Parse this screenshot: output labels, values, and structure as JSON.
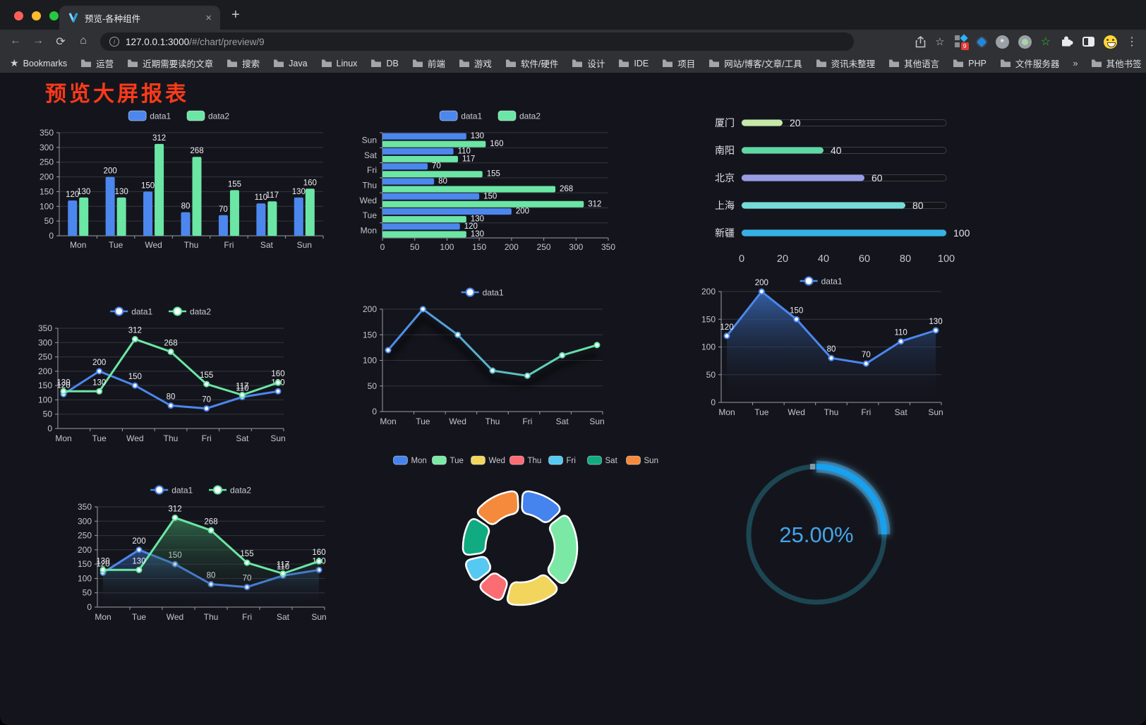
{
  "browser": {
    "traffic_lights": [
      "#ff5f57",
      "#febc2e",
      "#28c840"
    ],
    "tab": {
      "title": "预览-各种组件",
      "close_icon": "×",
      "new_tab_icon": "+"
    },
    "nav": {
      "back_icon": "←",
      "forward_icon": "→",
      "reload_icon": "⟳",
      "home_icon": "⌂",
      "info_icon": "i"
    },
    "url": {
      "host": "127.0.0.1:3000",
      "path": "/#/chart/preview/9"
    },
    "actions": {
      "star_icon": "☆",
      "menu_icon": "⋮"
    },
    "extension_badge": "9",
    "bookmarks_label": "Bookmarks",
    "bookmarks": [
      "运营",
      "近期需要读的文章",
      "搜索",
      "Java",
      "Linux",
      "DB",
      "前端",
      "游戏",
      "软件/硬件",
      "设计",
      "IDE",
      "项目",
      "网站/博客/文章/工具",
      "资讯未整理",
      "其他语言",
      "PHP",
      "文件服务器"
    ],
    "bookmarks_overflow": "»",
    "other_bookmarks": "其他书签"
  },
  "page": {
    "title": "预览大屏报表",
    "title_color": "#fb3a1a",
    "background": "#14151c"
  },
  "chart_data": [
    {
      "id": "bar-vertical",
      "type": "bar",
      "categories": [
        "Mon",
        "Tue",
        "Wed",
        "Thu",
        "Fri",
        "Sat",
        "Sun"
      ],
      "series": [
        {
          "name": "data1",
          "color": "#4c87ee",
          "values": [
            120,
            200,
            150,
            80,
            70,
            110,
            130
          ]
        },
        {
          "name": "data2",
          "color": "#6be6a5",
          "values": [
            130,
            130,
            312,
            268,
            155,
            117,
            160
          ]
        }
      ],
      "ylim": [
        0,
        350
      ],
      "yticks": [
        0,
        50,
        100,
        150,
        200,
        250,
        300,
        350
      ],
      "grid": true,
      "legend_position": "top",
      "value_labels": true
    },
    {
      "id": "bar-horizontal",
      "type": "bar-horizontal",
      "categories": [
        "Mon",
        "Tue",
        "Wed",
        "Thu",
        "Fri",
        "Sat",
        "Sun"
      ],
      "display_order": [
        "Sun",
        "Sat",
        "Fri",
        "Thu",
        "Wed",
        "Tue",
        "Mon"
      ],
      "series": [
        {
          "name": "data1",
          "color": "#4c87ee",
          "values": [
            120,
            200,
            150,
            80,
            70,
            110,
            130
          ]
        },
        {
          "name": "data2",
          "color": "#6be6a5",
          "values": [
            130,
            130,
            312,
            268,
            155,
            117,
            160
          ]
        }
      ],
      "xlim": [
        0,
        350
      ],
      "xticks": [
        0,
        50,
        100,
        150,
        200,
        250,
        300,
        350
      ],
      "grid": true,
      "legend_position": "top",
      "value_labels": true
    },
    {
      "id": "progress-bars",
      "type": "progress",
      "items": [
        {
          "label": "厦门",
          "value": 20,
          "color": "#c6e9a9"
        },
        {
          "label": "南阳",
          "value": 40,
          "color": "#5fd8a5"
        },
        {
          "label": "北京",
          "value": 60,
          "color": "#989ce3"
        },
        {
          "label": "上海",
          "value": 80,
          "color": "#76dcd9"
        },
        {
          "label": "新疆",
          "value": 100,
          "color": "#35b1e6"
        }
      ],
      "xlim": [
        0,
        100
      ],
      "xticks": [
        0,
        20,
        40,
        60,
        80,
        100
      ]
    },
    {
      "id": "line-two",
      "type": "line",
      "categories": [
        "Mon",
        "Tue",
        "Wed",
        "Thu",
        "Fri",
        "Sat",
        "Sun"
      ],
      "series": [
        {
          "name": "data1",
          "color": "#4c87ee",
          "values": [
            120,
            200,
            150,
            80,
            70,
            110,
            130
          ]
        },
        {
          "name": "data2",
          "color": "#6be6a5",
          "values": [
            130,
            130,
            312,
            268,
            155,
            117,
            160
          ]
        }
      ],
      "ylim": [
        0,
        350
      ],
      "yticks": [
        0,
        50,
        100,
        150,
        200,
        250,
        300,
        350
      ],
      "grid": true,
      "legend_position": "top",
      "value_labels": true
    },
    {
      "id": "line-gradient",
      "type": "line",
      "categories": [
        "Mon",
        "Tue",
        "Wed",
        "Thu",
        "Fri",
        "Sat",
        "Sun"
      ],
      "series": [
        {
          "name": "data1",
          "color": [
            "#4c87ee",
            "#67e8a2"
          ],
          "values": [
            120,
            200,
            150,
            80,
            70,
            110,
            130
          ]
        }
      ],
      "ylim": [
        0,
        200
      ],
      "yticks": [
        0,
        50,
        100,
        150,
        200
      ],
      "grid": true,
      "legend_position": "top",
      "value_labels": false,
      "shadow": true
    },
    {
      "id": "line-area",
      "type": "line",
      "categories": [
        "Mon",
        "Tue",
        "Wed",
        "Thu",
        "Fri",
        "Sat",
        "Sun"
      ],
      "series": [
        {
          "name": "data1",
          "color": "#4c87ee",
          "values": [
            120,
            200,
            150,
            80,
            70,
            110,
            130
          ],
          "area": "rgba(58,108,188,0.85)"
        }
      ],
      "ylim": [
        0,
        200
      ],
      "yticks": [
        0,
        50,
        100,
        150,
        200
      ],
      "grid": true,
      "legend_position": "top",
      "value_labels": true
    },
    {
      "id": "line-area-two",
      "type": "line",
      "categories": [
        "Mon",
        "Tue",
        "Wed",
        "Thu",
        "Fri",
        "Sat",
        "Sun"
      ],
      "series": [
        {
          "name": "data1",
          "color": "#4c87ee",
          "values": [
            120,
            200,
            150,
            80,
            70,
            110,
            130
          ],
          "area": "rgba(58,108,188,0.60)"
        },
        {
          "name": "data2",
          "color": "#6be6a5",
          "values": [
            130,
            130,
            312,
            268,
            155,
            117,
            160
          ],
          "area": "rgba(70,170,110,0.55)"
        }
      ],
      "ylim": [
        0,
        350
      ],
      "yticks": [
        0,
        50,
        100,
        150,
        200,
        250,
        300,
        350
      ],
      "grid": true,
      "legend_position": "top",
      "value_labels": true
    },
    {
      "id": "donut",
      "type": "pie",
      "items": [
        {
          "label": "Mon",
          "value": 120,
          "color": "#4583ee"
        },
        {
          "label": "Tue",
          "value": 200,
          "color": "#7ce8a5"
        },
        {
          "label": "Wed",
          "value": 150,
          "color": "#f2d55c"
        },
        {
          "label": "Thu",
          "value": 80,
          "color": "#fa6d73"
        },
        {
          "label": "Fri",
          "value": 70,
          "color": "#55c9f2"
        },
        {
          "label": "Sat",
          "value": 110,
          "color": "#10ab80"
        },
        {
          "label": "Sun",
          "value": 130,
          "color": "#f58a3d"
        }
      ],
      "legend_position": "top",
      "inner_radius": 49,
      "outer_radius": 81,
      "border_color": "#ffffff"
    },
    {
      "id": "gauge",
      "type": "gauge",
      "value_text": "25.00%",
      "percent": 25,
      "color": "#18a2f0",
      "track_color": "#1d4653",
      "text_color": "#44a5ea"
    }
  ]
}
